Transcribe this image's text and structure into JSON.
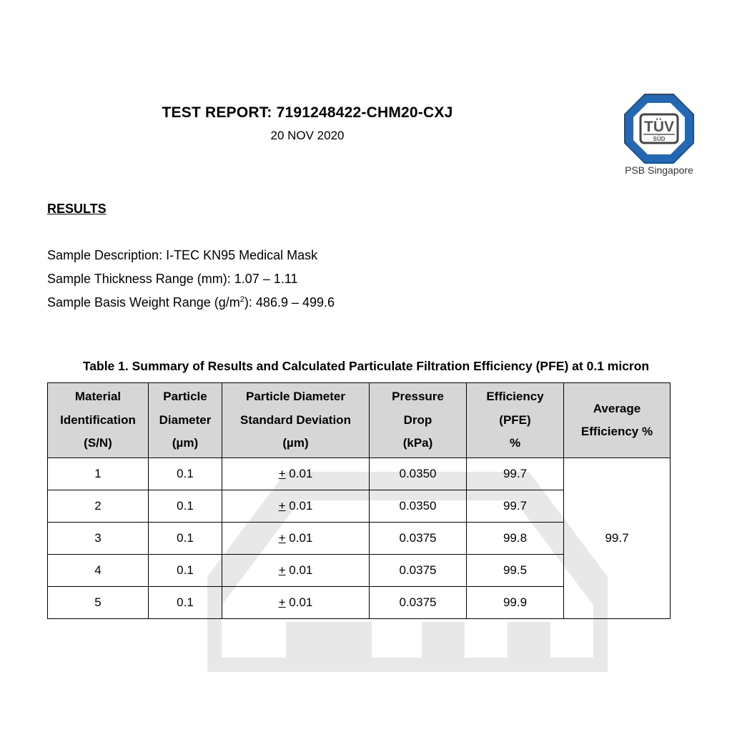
{
  "header": {
    "title": "TEST REPORT:  7191248422-CHM20-CXJ",
    "date": "20 NOV 2020"
  },
  "logo": {
    "text_top": "TÜV",
    "text_bottom": "SÜD",
    "caption": "PSB Singapore",
    "color": "#1f5fa8"
  },
  "section": {
    "heading": "RESULTS"
  },
  "sample": {
    "description": "Sample Description: I-TEC KN95 Medical Mask",
    "thickness": "Sample Thickness Range (mm): 1.07 – 1.11",
    "weight_prefix": "Sample Basis Weight Range (g/m",
    "weight_sup": "2",
    "weight_suffix": "): 486.9 – 499.6"
  },
  "table": {
    "caption": "Table 1. Summary of Results and Calculated Particulate Filtration Efficiency (PFE) at 0.1 micron",
    "headers": [
      [
        "Material",
        "Identification",
        "(S/N)"
      ],
      [
        "Particle",
        "Diameter",
        "(µm)"
      ],
      [
        "Particle Diameter",
        "Standard Deviation",
        "(µm)"
      ],
      [
        "Pressure",
        "Drop",
        "(kPa)"
      ],
      [
        "Efficiency",
        "(PFE)",
        "%"
      ],
      [
        "Average",
        "Efficiency  %"
      ]
    ],
    "rows": [
      {
        "sn": "1",
        "diameter": "0.1",
        "pm": "+",
        "sd": " 0.01",
        "pressure": "0.0350",
        "efficiency": "99.7"
      },
      {
        "sn": "2",
        "diameter": "0.1",
        "pm": "+",
        "sd": " 0.01",
        "pressure": "0.0350",
        "efficiency": "99.7"
      },
      {
        "sn": "3",
        "diameter": "0.1",
        "pm": "+",
        "sd": " 0.01",
        "pressure": "0.0375",
        "efficiency": "99.8"
      },
      {
        "sn": "4",
        "diameter": "0.1",
        "pm": "+",
        "sd": " 0.01",
        "pressure": "0.0375",
        "efficiency": "99.5"
      },
      {
        "sn": "5",
        "diameter": "0.1",
        "pm": "+",
        "sd": " 0.01",
        "pressure": "0.0375",
        "efficiency": "99.9"
      }
    ],
    "average": "99.7"
  }
}
